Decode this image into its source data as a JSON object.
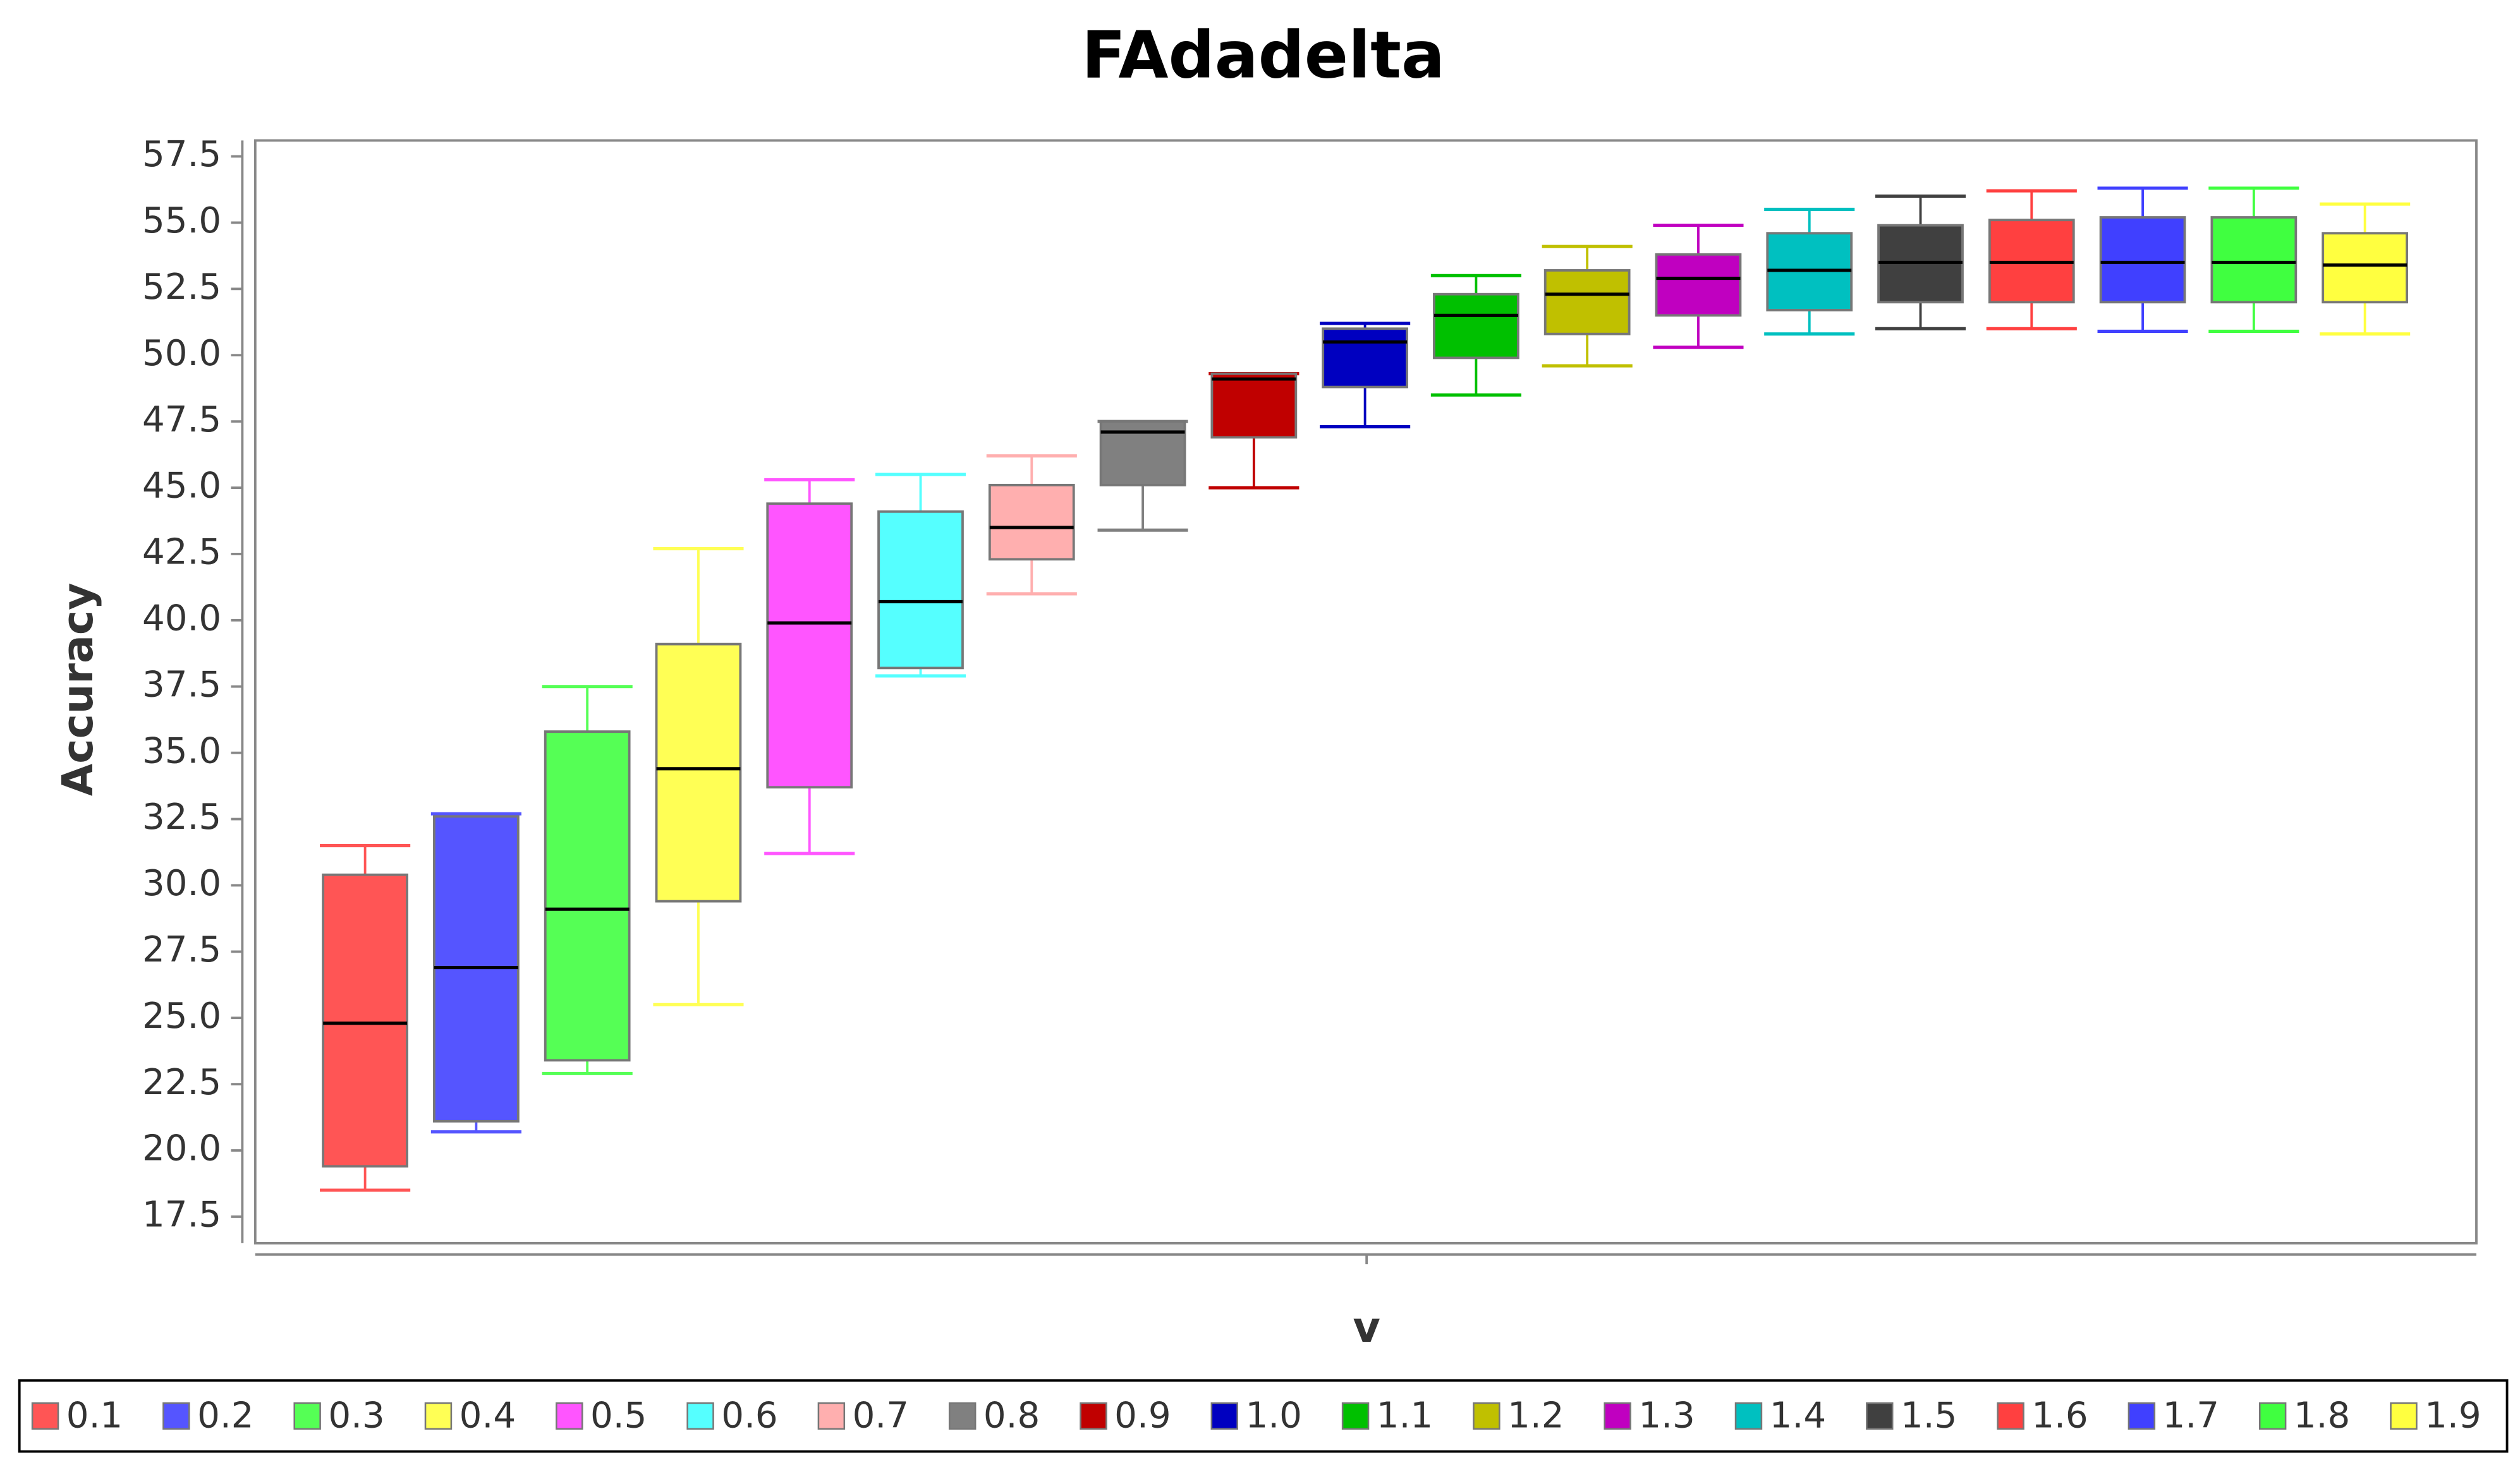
{
  "chart_data": {
    "type": "boxplot",
    "title": "FAdadelta",
    "x_label": "v",
    "y_label": "Accuracy",
    "ylim": [
      16.5,
      58.1
    ],
    "yticks": [
      17.5,
      {
        "value": 20,
        "label": "20.0"
      },
      22.5,
      {
        "value": 25,
        "label": "25.0"
      },
      27.5,
      {
        "value": 30,
        "label": "30.0"
      },
      32.5,
      {
        "value": 35,
        "label": "35.0"
      },
      37.5,
      {
        "value": 40,
        "label": "40.0"
      },
      42.5,
      {
        "value": 45,
        "label": "45.0"
      },
      47.5,
      {
        "value": 50,
        "label": "50.0"
      },
      52.5,
      {
        "value": 55,
        "label": "55.0"
      },
      57.5
    ],
    "series": [
      {
        "name": "0.1",
        "color": "#ff5555",
        "min": 18.5,
        "q1": 19.4,
        "median": 24.8,
        "q3": 30.4,
        "max": 31.5
      },
      {
        "name": "0.2",
        "color": "#5555ff",
        "min": 20.7,
        "q1": 21.1,
        "median": 26.9,
        "q3": 32.6,
        "max": 32.7
      },
      {
        "name": "0.3",
        "color": "#55ff55",
        "min": 22.9,
        "q1": 23.4,
        "median": 29.1,
        "q3": 35.8,
        "max": 37.5
      },
      {
        "name": "0.4",
        "color": "#ffff55",
        "min": 25.5,
        "q1": 29.4,
        "median": 34.4,
        "q3": 39.1,
        "max": 42.7
      },
      {
        "name": "0.5",
        "color": "#ff55ff",
        "min": 31.2,
        "q1": 33.7,
        "median": 39.9,
        "q3": 44.4,
        "max": 45.3
      },
      {
        "name": "0.6",
        "color": "#55ffff",
        "min": 37.9,
        "q1": 38.2,
        "median": 40.7,
        "q3": 44.1,
        "max": 45.5
      },
      {
        "name": "0.7",
        "color": "#ffafaf",
        "min": 41.0,
        "q1": 42.3,
        "median": 43.5,
        "q3": 45.1,
        "max": 46.2
      },
      {
        "name": "0.8",
        "color": "#808080",
        "min": 43.4,
        "q1": 45.1,
        "median": 47.1,
        "q3": 47.5,
        "max": 47.5
      },
      {
        "name": "0.9",
        "color": "#c00000",
        "min": 45.0,
        "q1": 46.9,
        "median": 49.1,
        "q3": 49.3,
        "max": 49.3
      },
      {
        "name": "1.0",
        "color": "#0000c0",
        "min": 47.3,
        "q1": 48.8,
        "median": 50.5,
        "q3": 51.0,
        "max": 51.2
      },
      {
        "name": "1.1",
        "color": "#00c000",
        "min": 48.5,
        "q1": 49.9,
        "median": 51.5,
        "q3": 52.3,
        "max": 53.0
      },
      {
        "name": "1.2",
        "color": "#c0c000",
        "min": 49.6,
        "q1": 50.8,
        "median": 52.3,
        "q3": 53.2,
        "max": 54.1
      },
      {
        "name": "1.3",
        "color": "#c000c0",
        "min": 50.3,
        "q1": 51.5,
        "median": 52.9,
        "q3": 53.8,
        "max": 54.9
      },
      {
        "name": "1.4",
        "color": "#00c0c0",
        "min": 50.8,
        "q1": 51.7,
        "median": 53.2,
        "q3": 54.6,
        "max": 55.5
      },
      {
        "name": "1.5",
        "color": "#404040",
        "min": 51.0,
        "q1": 52.0,
        "median": 53.5,
        "q3": 54.9,
        "max": 56.0
      },
      {
        "name": "1.6",
        "color": "#ff4040",
        "min": 51.0,
        "q1": 52.0,
        "median": 53.5,
        "q3": 55.1,
        "max": 56.2
      },
      {
        "name": "1.7",
        "color": "#4040ff",
        "min": 50.9,
        "q1": 52.0,
        "median": 53.5,
        "q3": 55.2,
        "max": 56.3
      },
      {
        "name": "1.8",
        "color": "#40ff40",
        "min": 50.9,
        "q1": 52.0,
        "median": 53.5,
        "q3": 55.2,
        "max": 56.3
      },
      {
        "name": "1.9",
        "color": "#ffff40",
        "min": 50.8,
        "q1": 52.0,
        "median": 53.4,
        "q3": 54.6,
        "max": 55.7
      }
    ]
  }
}
